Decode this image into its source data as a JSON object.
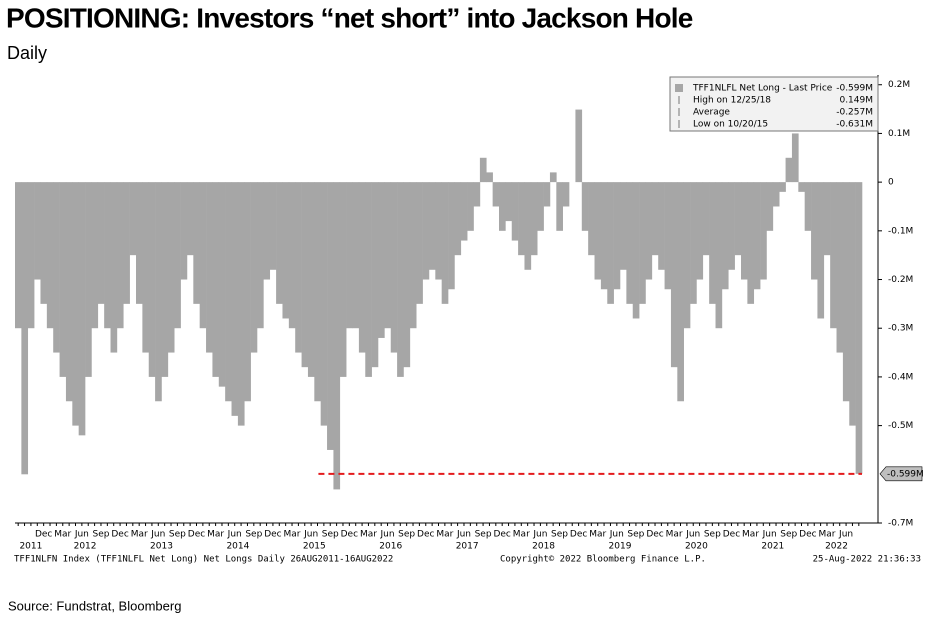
{
  "chart_data": {
    "type": "bar",
    "title": "POSITIONING: Investors “net short” into Jackson Hole",
    "subtitle": "Daily",
    "source": "Source: Fundstrat, Bloomberg",
    "footer_left": "TFF1NLFN Index (TFF1NLFL Net Long) Net Longs  Daily 26AUG2011-16AUG2022",
    "footer_center": "Copyright© 2022 Bloomberg Finance L.P.",
    "footer_right": "25-Aug-2022 21:36:33",
    "color": "#a6a6a6",
    "legend_box": [
      {
        "label": "TFF1NLFL Net Long - Last Price",
        "value_label": "-0.599M"
      },
      {
        "label": "High on 12/25/18",
        "value_label": "0.149M"
      },
      {
        "label": "Average",
        "value_label": "-0.257M"
      },
      {
        "label": "Low on 10/20/15",
        "value_label": "-0.631M"
      }
    ],
    "reference_line": {
      "value": -0.599,
      "label": "-0.599M",
      "color": "#e31a1c"
    },
    "years": [
      "2011",
      "2012",
      "2013",
      "2014",
      "2015",
      "2016",
      "2017",
      "2018",
      "2019",
      "2020",
      "2021",
      "2022"
    ],
    "categories": [
      null,
      null,
      null,
      null,
      "Dec",
      null,
      null,
      "Mar",
      null,
      null,
      "Jun",
      null,
      null,
      "Sep",
      null,
      null,
      "Dec",
      null,
      null,
      "Mar",
      null,
      null,
      "Jun",
      null,
      null,
      "Sep",
      null,
      null,
      "Dec",
      null,
      null,
      "Mar",
      null,
      null,
      "Jun",
      null,
      null,
      "Sep",
      null,
      null,
      "Dec",
      null,
      null,
      "Mar",
      null,
      null,
      "Jun",
      null,
      null,
      "Sep",
      null,
      null,
      "Dec",
      null,
      null,
      "Mar",
      null,
      null,
      "Jun",
      null,
      null,
      "Sep",
      null,
      null,
      "Dec",
      null,
      null,
      "Mar",
      null,
      null,
      "Jun",
      null,
      null,
      "Sep",
      null,
      null,
      "Dec",
      null,
      null,
      "Mar",
      null,
      null,
      "Jun",
      null,
      null,
      "Sep",
      null,
      null,
      "Dec",
      null,
      null,
      "Mar",
      null,
      null,
      "Jun",
      null,
      null,
      "Sep",
      null,
      null,
      "Dec",
      null,
      null,
      "Mar",
      null,
      null,
      "Jun",
      null,
      null,
      "Sep",
      null,
      null,
      "Dec",
      null,
      null,
      "Mar",
      null,
      null,
      "Jun",
      null,
      null,
      "Sep",
      null,
      null,
      "Dec",
      null,
      null,
      "Mar",
      null,
      null,
      "Jun",
      null,
      null
    ],
    "values": [
      -0.3,
      -0.6,
      -0.3,
      -0.2,
      -0.25,
      -0.3,
      -0.35,
      -0.4,
      -0.45,
      -0.5,
      -0.52,
      -0.4,
      -0.3,
      -0.25,
      -0.3,
      -0.35,
      -0.3,
      -0.25,
      -0.15,
      -0.25,
      -0.35,
      -0.4,
      -0.45,
      -0.4,
      -0.35,
      -0.3,
      -0.2,
      -0.15,
      -0.25,
      -0.3,
      -0.35,
      -0.4,
      -0.42,
      -0.45,
      -0.48,
      -0.5,
      -0.45,
      -0.35,
      -0.3,
      -0.2,
      -0.18,
      -0.25,
      -0.28,
      -0.3,
      -0.35,
      -0.38,
      -0.4,
      -0.45,
      -0.5,
      -0.55,
      -0.631,
      -0.4,
      -0.3,
      -0.3,
      -0.35,
      -0.4,
      -0.38,
      -0.32,
      -0.3,
      -0.35,
      -0.4,
      -0.38,
      -0.3,
      -0.25,
      -0.2,
      -0.18,
      -0.2,
      -0.25,
      -0.22,
      -0.15,
      -0.12,
      -0.1,
      -0.05,
      0.05,
      0.02,
      -0.05,
      -0.1,
      -0.08,
      -0.12,
      -0.15,
      -0.18,
      -0.15,
      -0.1,
      -0.05,
      0.02,
      -0.1,
      -0.05,
      0.0,
      0.149,
      -0.1,
      -0.15,
      -0.2,
      -0.22,
      -0.25,
      -0.22,
      -0.18,
      -0.25,
      -0.28,
      -0.25,
      -0.2,
      -0.15,
      -0.18,
      -0.22,
      -0.38,
      -0.45,
      -0.3,
      -0.25,
      -0.2,
      -0.15,
      -0.25,
      -0.3,
      -0.22,
      -0.18,
      -0.15,
      -0.2,
      -0.25,
      -0.22,
      -0.2,
      -0.1,
      -0.05,
      -0.02,
      0.05,
      0.1,
      -0.02,
      -0.1,
      -0.2,
      -0.28,
      -0.15,
      -0.3,
      -0.35,
      -0.45,
      -0.5,
      -0.599
    ],
    "ylim": [
      -0.7,
      0.22
    ],
    "yticks": [
      {
        "value": 0.2,
        "label": "0.2M"
      },
      {
        "value": 0.1,
        "label": "0.1M"
      },
      0,
      {
        "value": -0.1,
        "label": "-0.1M"
      },
      {
        "value": -0.2,
        "label": "-0.2M"
      },
      {
        "value": -0.3,
        "label": "-0.3M"
      },
      {
        "value": -0.4,
        "label": "-0.4M"
      },
      {
        "value": -0.5,
        "label": "-0.5M"
      },
      {
        "value": -0.7,
        "label": "-0.7M"
      }
    ]
  }
}
